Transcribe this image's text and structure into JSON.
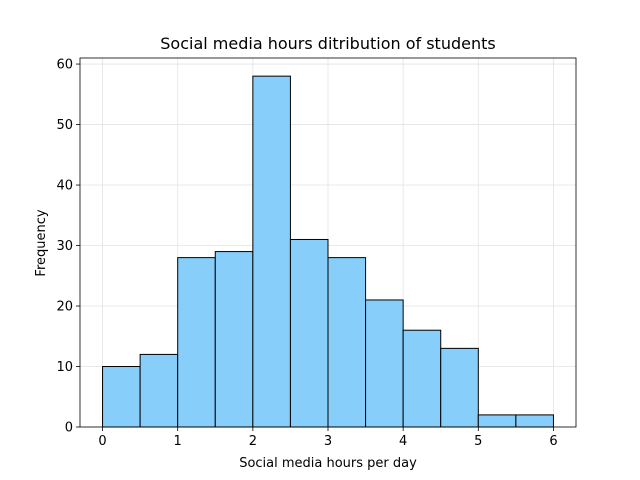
{
  "chart_data": {
    "type": "bar",
    "title": "Social media hours ditribution of students",
    "xlabel": "Social media hours per day",
    "ylabel": "Frequency",
    "bin_edges": [
      0,
      0.5,
      1,
      1.5,
      2,
      2.5,
      3,
      3.5,
      4,
      4.5,
      5,
      5.5,
      6
    ],
    "values": [
      10,
      12,
      28,
      29,
      58,
      31,
      28,
      21,
      16,
      13,
      2,
      2
    ],
    "xlim": [
      -0.3,
      6.3
    ],
    "ylim": [
      0,
      61
    ],
    "xticks": [
      0,
      1,
      2,
      3,
      4,
      5,
      6
    ],
    "yticks": [
      0,
      10,
      20,
      30,
      40,
      50,
      60
    ],
    "grid": true,
    "bar_color": "#87CEFA",
    "edge_color": "#000000"
  }
}
